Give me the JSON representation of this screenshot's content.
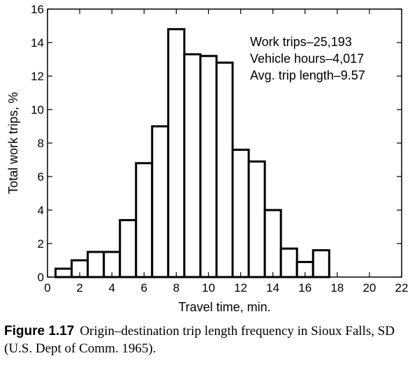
{
  "chart_data": {
    "type": "bar",
    "x_start": [
      0.5,
      1.5,
      2.5,
      3.5,
      4.5,
      5.5,
      6.5,
      7.5,
      8.5,
      9.5,
      10.5,
      11.5,
      12.5,
      13.5,
      14.5,
      15.5,
      16.5
    ],
    "bin_width": 1,
    "values": [
      0.5,
      1.0,
      1.5,
      1.5,
      3.4,
      6.8,
      9.0,
      14.8,
      13.3,
      13.2,
      12.8,
      7.6,
      6.9,
      4.0,
      1.7,
      0.9,
      1.6
    ],
    "xlabel": "Travel time, min.",
    "ylabel": "Total work trips, %",
    "xlim": [
      0,
      22
    ],
    "ylim": [
      0,
      16
    ],
    "xticks": [
      "0",
      "2",
      "4",
      "6",
      "8",
      "10",
      "12",
      "14",
      "16",
      "18",
      "20",
      "22"
    ],
    "yticks": [
      "0",
      "2",
      "4",
      "6",
      "8",
      "10",
      "12",
      "14",
      "16"
    ],
    "annotations": [
      "Work trips–25,193",
      "Vehicle hours–4,017",
      "Avg. trip length–9.57"
    ],
    "grid": false,
    "legend": "none"
  },
  "caption": {
    "label": "Figure 1.17",
    "text": "Origin–destination trip length frequency in Sioux Falls, SD (U.S. Dept of Comm. 1965)."
  }
}
